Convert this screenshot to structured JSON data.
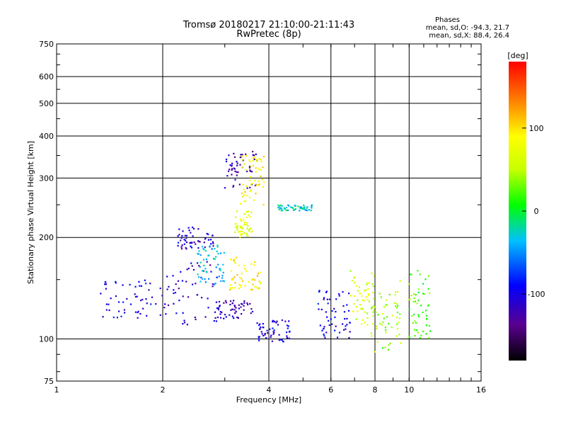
{
  "chart_data": {
    "type": "scatter",
    "title": "Tromsø 20180217 21:10:00-21:11:43",
    "subtitle": "RwPretec (8p)",
    "xlabel": "Frequency [MHz]",
    "ylabel": "Stationary phase Virtual Height [km]",
    "x_scale": "log",
    "y_scale": "log",
    "xlim": [
      1,
      16
    ],
    "ylim": [
      75,
      750
    ],
    "x_ticks": [
      1,
      2,
      4,
      6,
      8,
      10,
      16
    ],
    "y_ticks": [
      75,
      100,
      200,
      300,
      400,
      500,
      600,
      750
    ],
    "grid": true,
    "phase_stats": {
      "heading": "Phases",
      "o_mode": "mean, sd,O: -94.3, 21.7",
      "x_mode": "mean, sd,X:  88.4, 26.4"
    },
    "colorbar": {
      "label": "[deg]",
      "ticks": [
        "100",
        "0",
        "-100"
      ],
      "tick_values": [
        100,
        0,
        -100
      ],
      "range": [
        -180,
        180
      ]
    },
    "clusters": [
      {
        "x": [
          1.3,
          2.0
        ],
        "y": [
          115,
          150
        ],
        "phase": -100
      },
      {
        "x": [
          2.0,
          2.9
        ],
        "y": [
          110,
          170
        ],
        "phase": -110
      },
      {
        "x": [
          2.2,
          2.8
        ],
        "y": [
          185,
          215
        ],
        "phase": -110
      },
      {
        "x": [
          2.5,
          3.0
        ],
        "y": [
          145,
          190
        ],
        "phase": -40
      },
      {
        "x": [
          2.8,
          3.6
        ],
        "y": [
          115,
          130
        ],
        "phase": -115
      },
      {
        "x": [
          3.0,
          3.7
        ],
        "y": [
          280,
          360
        ],
        "phase": -125
      },
      {
        "x": [
          3.3,
          3.9
        ],
        "y": [
          250,
          350
        ],
        "phase": 90
      },
      {
        "x": [
          3.1,
          3.8
        ],
        "y": [
          140,
          175
        ],
        "phase": 95
      },
      {
        "x": [
          3.2,
          3.6
        ],
        "y": [
          200,
          240
        ],
        "phase": 70
      },
      {
        "x": [
          3.7,
          4.6
        ],
        "y": [
          98,
          115
        ],
        "phase": -105
      },
      {
        "x": [
          4.2,
          5.3
        ],
        "y": [
          240,
          250
        ],
        "phase": -30
      },
      {
        "x": [
          5.5,
          6.8
        ],
        "y": [
          100,
          140
        ],
        "phase": -100
      },
      {
        "x": [
          6.8,
          8.0
        ],
        "y": [
          110,
          160
        ],
        "phase": 60
      },
      {
        "x": [
          7.8,
          9.5
        ],
        "y": [
          90,
          150
        ],
        "phase": 40
      },
      {
        "x": [
          10.0,
          11.5
        ],
        "y": [
          100,
          160
        ],
        "phase": 20
      }
    ]
  }
}
